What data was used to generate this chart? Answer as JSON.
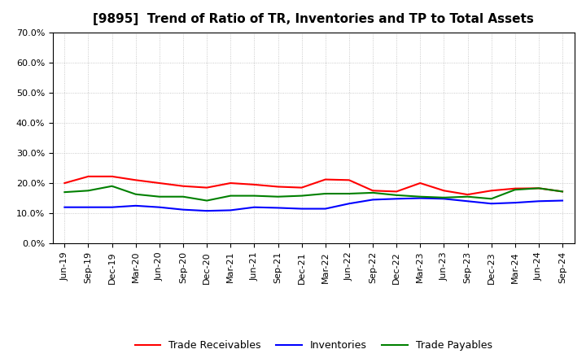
{
  "title": "[9895]  Trend of Ratio of TR, Inventories and TP to Total Assets",
  "x_labels": [
    "Jun-19",
    "Sep-19",
    "Dec-19",
    "Mar-20",
    "Jun-20",
    "Sep-20",
    "Dec-20",
    "Mar-21",
    "Jun-21",
    "Sep-21",
    "Dec-21",
    "Mar-22",
    "Jun-22",
    "Sep-22",
    "Dec-22",
    "Mar-23",
    "Jun-23",
    "Sep-23",
    "Dec-23",
    "Mar-24",
    "Jun-24",
    "Sep-24"
  ],
  "trade_receivables": [
    0.2,
    0.222,
    0.222,
    0.21,
    0.2,
    0.19,
    0.185,
    0.2,
    0.195,
    0.188,
    0.185,
    0.212,
    0.21,
    0.175,
    0.172,
    0.2,
    0.175,
    0.162,
    0.175,
    0.182,
    0.183,
    0.172
  ],
  "inventories": [
    0.12,
    0.12,
    0.12,
    0.125,
    0.12,
    0.112,
    0.108,
    0.11,
    0.12,
    0.118,
    0.115,
    0.115,
    0.132,
    0.145,
    0.148,
    0.15,
    0.148,
    0.14,
    0.132,
    0.135,
    0.14,
    0.142
  ],
  "trade_payables": [
    0.17,
    0.175,
    0.19,
    0.163,
    0.155,
    0.155,
    0.142,
    0.158,
    0.158,
    0.155,
    0.158,
    0.165,
    0.165,
    0.168,
    0.16,
    0.155,
    0.152,
    0.155,
    0.148,
    0.178,
    0.183,
    0.172
  ],
  "tr_color": "#FF0000",
  "inv_color": "#0000FF",
  "tp_color": "#008000",
  "ylim_min": 0.0,
  "ylim_max": 0.7,
  "yticks": [
    0.0,
    0.1,
    0.2,
    0.3,
    0.4,
    0.5,
    0.6,
    0.7
  ],
  "background_color": "#FFFFFF",
  "grid_color": "#AAAAAA",
  "legend_labels": [
    "Trade Receivables",
    "Inventories",
    "Trade Payables"
  ],
  "title_fontsize": 11,
  "tick_fontsize": 8,
  "legend_fontsize": 9
}
